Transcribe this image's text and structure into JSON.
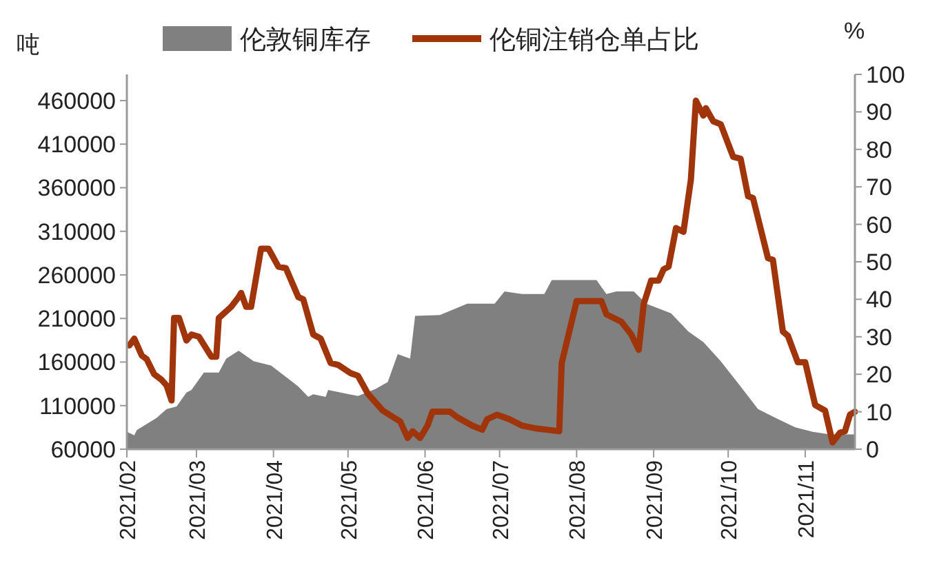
{
  "chart_data": {
    "type": "area",
    "ylabel": "吨",
    "y2label": "%",
    "legend": "top",
    "grid": false,
    "xlim": [
      "2021-02-01",
      "2021-11-21"
    ],
    "xticks": [
      {
        "value": "2021-02-01",
        "label": "2021/02"
      },
      {
        "value": "2021-03-01",
        "label": "2021/03"
      },
      {
        "value": "2021-04-01",
        "label": "2021/04"
      },
      {
        "value": "2021-05-01",
        "label": "2021/05"
      },
      {
        "value": "2021-06-01",
        "label": "2021/06"
      },
      {
        "value": "2021-07-01",
        "label": "2021/07"
      },
      {
        "value": "2021-08-01",
        "label": "2021/08"
      },
      {
        "value": "2021-09-01",
        "label": "2021/09"
      },
      {
        "value": "2021-10-01",
        "label": "2021/10"
      },
      {
        "value": "2021-11-01",
        "label": "2021/11"
      }
    ],
    "ylim": [
      60000,
      490000
    ],
    "yticks": [
      60000,
      110000,
      160000,
      210000,
      260000,
      310000,
      360000,
      410000,
      460000
    ],
    "y2lim": [
      0,
      100
    ],
    "y2ticks": [
      0,
      10,
      20,
      30,
      40,
      50,
      60,
      70,
      80,
      90,
      100
    ],
    "series": [
      {
        "name": "伦敦铜库存",
        "color": "#808080",
        "x": [
          "2021-02-01",
          "2021-02-04",
          "2021-02-05",
          "2021-02-13",
          "2021-02-17",
          "2021-02-21",
          "2021-02-25",
          "2021-02-27",
          "2021-03-04",
          "2021-03-10",
          "2021-03-13",
          "2021-03-18",
          "2021-03-24",
          "2021-03-31",
          "2021-04-06",
          "2021-04-11",
          "2021-04-15",
          "2021-04-17",
          "2021-04-22",
          "2021-04-23",
          "2021-05-05",
          "2021-05-12",
          "2021-05-17",
          "2021-05-21",
          "2021-05-26",
          "2021-05-28",
          "2021-06-07",
          "2021-06-18",
          "2021-06-29",
          "2021-07-03",
          "2021-07-10",
          "2021-07-19",
          "2021-07-22",
          "2021-08-09",
          "2021-08-13",
          "2021-08-17",
          "2021-08-24",
          "2021-08-29",
          "2021-09-08",
          "2021-09-15",
          "2021-09-21",
          "2021-09-28",
          "2021-10-06",
          "2021-10-13",
          "2021-10-20",
          "2021-10-28",
          "2021-11-04",
          "2021-11-11",
          "2021-11-21"
        ],
        "values": [
          80000,
          76000,
          82000,
          96000,
          106000,
          109000,
          125000,
          128000,
          148000,
          148000,
          164000,
          173000,
          161000,
          156000,
          143000,
          132000,
          120000,
          123000,
          120000,
          128000,
          121000,
          129000,
          137000,
          169000,
          164000,
          213000,
          214000,
          227000,
          227000,
          241000,
          238000,
          238000,
          254000,
          254000,
          238000,
          241000,
          241000,
          227000,
          216000,
          195000,
          183000,
          161000,
          132000,
          106000,
          96000,
          85000,
          80000,
          77000,
          77000
        ]
      },
      {
        "name": "伦铜注销仓单占比",
        "type": "line",
        "axis": "y2",
        "color": "#a0340a",
        "x": [
          "2021-02-02",
          "2021-02-04",
          "2021-02-07",
          "2021-02-09",
          "2021-02-12",
          "2021-02-15",
          "2021-02-17",
          "2021-02-19",
          "2021-02-20",
          "2021-02-22",
          "2021-02-25",
          "2021-02-27",
          "2021-03-02",
          "2021-03-07",
          "2021-03-09",
          "2021-03-10",
          "2021-03-15",
          "2021-03-18",
          "2021-03-19",
          "2021-03-21",
          "2021-03-23",
          "2021-03-27",
          "2021-03-30",
          "2021-04-03",
          "2021-04-06",
          "2021-04-11",
          "2021-04-13",
          "2021-04-17",
          "2021-04-20",
          "2021-04-24",
          "2021-04-27",
          "2021-05-02",
          "2021-05-05",
          "2021-05-09",
          "2021-05-15",
          "2021-05-22",
          "2021-05-25",
          "2021-05-27",
          "2021-05-30",
          "2021-06-02",
          "2021-06-04",
          "2021-06-11",
          "2021-06-14",
          "2021-06-20",
          "2021-06-24",
          "2021-06-26",
          "2021-06-30",
          "2021-07-05",
          "2021-07-10",
          "2021-07-16",
          "2021-07-25",
          "2021-07-26",
          "2021-08-01",
          "2021-08-11",
          "2021-08-13",
          "2021-08-19",
          "2021-08-23",
          "2021-08-26",
          "2021-08-28",
          "2021-08-31",
          "2021-09-03",
          "2021-09-05",
          "2021-09-07",
          "2021-09-10",
          "2021-09-13",
          "2021-09-16",
          "2021-09-18",
          "2021-09-21",
          "2021-09-22",
          "2021-09-25",
          "2021-09-28",
          "2021-10-03",
          "2021-10-06",
          "2021-10-09",
          "2021-10-11",
          "2021-10-17",
          "2021-10-19",
          "2021-10-23",
          "2021-10-25",
          "2021-10-29",
          "2021-11-01",
          "2021-11-05",
          "2021-11-09",
          "2021-11-12",
          "2021-11-15",
          "2021-11-17",
          "2021-11-19",
          "2021-11-21"
        ],
        "values": [
          27.7,
          29.5,
          25,
          24,
          20,
          18.5,
          17,
          13,
          35,
          35,
          29,
          30.6,
          30,
          24.7,
          24.7,
          35,
          38,
          40.6,
          41.7,
          38,
          38,
          53.5,
          53.5,
          48.7,
          48.3,
          40.6,
          40,
          30.6,
          29.5,
          23,
          22.5,
          20.3,
          19.6,
          14.8,
          10.3,
          7.4,
          3,
          4.8,
          3,
          6.3,
          10,
          10,
          8.5,
          6.3,
          5.2,
          8,
          9.2,
          8,
          6.3,
          5.5,
          4.8,
          23,
          39.5,
          39.5,
          36,
          34,
          30.6,
          26.5,
          38.7,
          45,
          45,
          48,
          48.7,
          59,
          58,
          72,
          93,
          89,
          91,
          87.5,
          86.7,
          78,
          77.5,
          67.5,
          67,
          51,
          50.5,
          31.4,
          30.3,
          23.2,
          23.2,
          11.8,
          10.3,
          1.8,
          4.4,
          4.8,
          9.2,
          10
        ]
      }
    ]
  }
}
